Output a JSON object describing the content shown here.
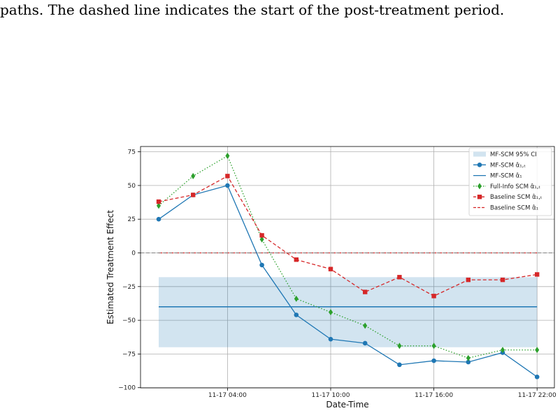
{
  "caption": "paths. The dashed line indicates the start of the post-treatment period.",
  "chart_data": {
    "type": "line",
    "xlabel": "Date-Time",
    "ylabel": "Estimated Treatment Effect",
    "x_ticks": [
      "11-17 04:00",
      "11-17 10:00",
      "11-17 16:00",
      "11-17 22:00"
    ],
    "x_tick_index": [
      2,
      5,
      8,
      11
    ],
    "y_ticks": [
      75,
      50,
      25,
      0,
      -25,
      -50,
      -75,
      -100
    ],
    "y_tick_labels": [
      "75",
      "50",
      "25",
      "0",
      "−25",
      "−50",
      "−75",
      "−100"
    ],
    "ylim": [
      -100,
      80
    ],
    "grid": true,
    "legend_position": "top-right",
    "series": [
      {
        "key": "ci",
        "name": "MF-SCM 95% CI",
        "style": "band",
        "color": "#1f77b4",
        "lower": -70,
        "upper": -18
      },
      {
        "key": "mf_t",
        "name": "MF-SCM α̂₁,ₜ",
        "style": "line-circle",
        "color": "#1f77b4",
        "values": [
          25,
          43,
          50,
          -9,
          -46,
          -64,
          -67,
          -83,
          -80,
          -81,
          -74,
          -92
        ]
      },
      {
        "key": "mf",
        "name": "MF-SCM α̂₁",
        "style": "hline",
        "color": "#1f77b4",
        "value": -40
      },
      {
        "key": "full_t",
        "name": "Full-Info SCM α̂₁,ₜ",
        "style": "dotted-diamond",
        "color": "#2ca02c",
        "values": [
          35,
          57,
          72,
          10,
          -34,
          -44,
          -54,
          -69,
          -69,
          -78,
          -72,
          -72
        ]
      },
      {
        "key": "base_t",
        "name": "Baseline SCM α̂₁,ₜ",
        "style": "dashed-square",
        "color": "#d62728",
        "values": [
          38,
          43,
          57,
          13,
          -5,
          -12,
          -29,
          -18,
          -32,
          -20,
          -20,
          -16
        ]
      },
      {
        "key": "base",
        "name": "Baseline SCM α̂₁",
        "style": "dashed-hline",
        "color": "#d62728",
        "value": 0
      }
    ]
  }
}
